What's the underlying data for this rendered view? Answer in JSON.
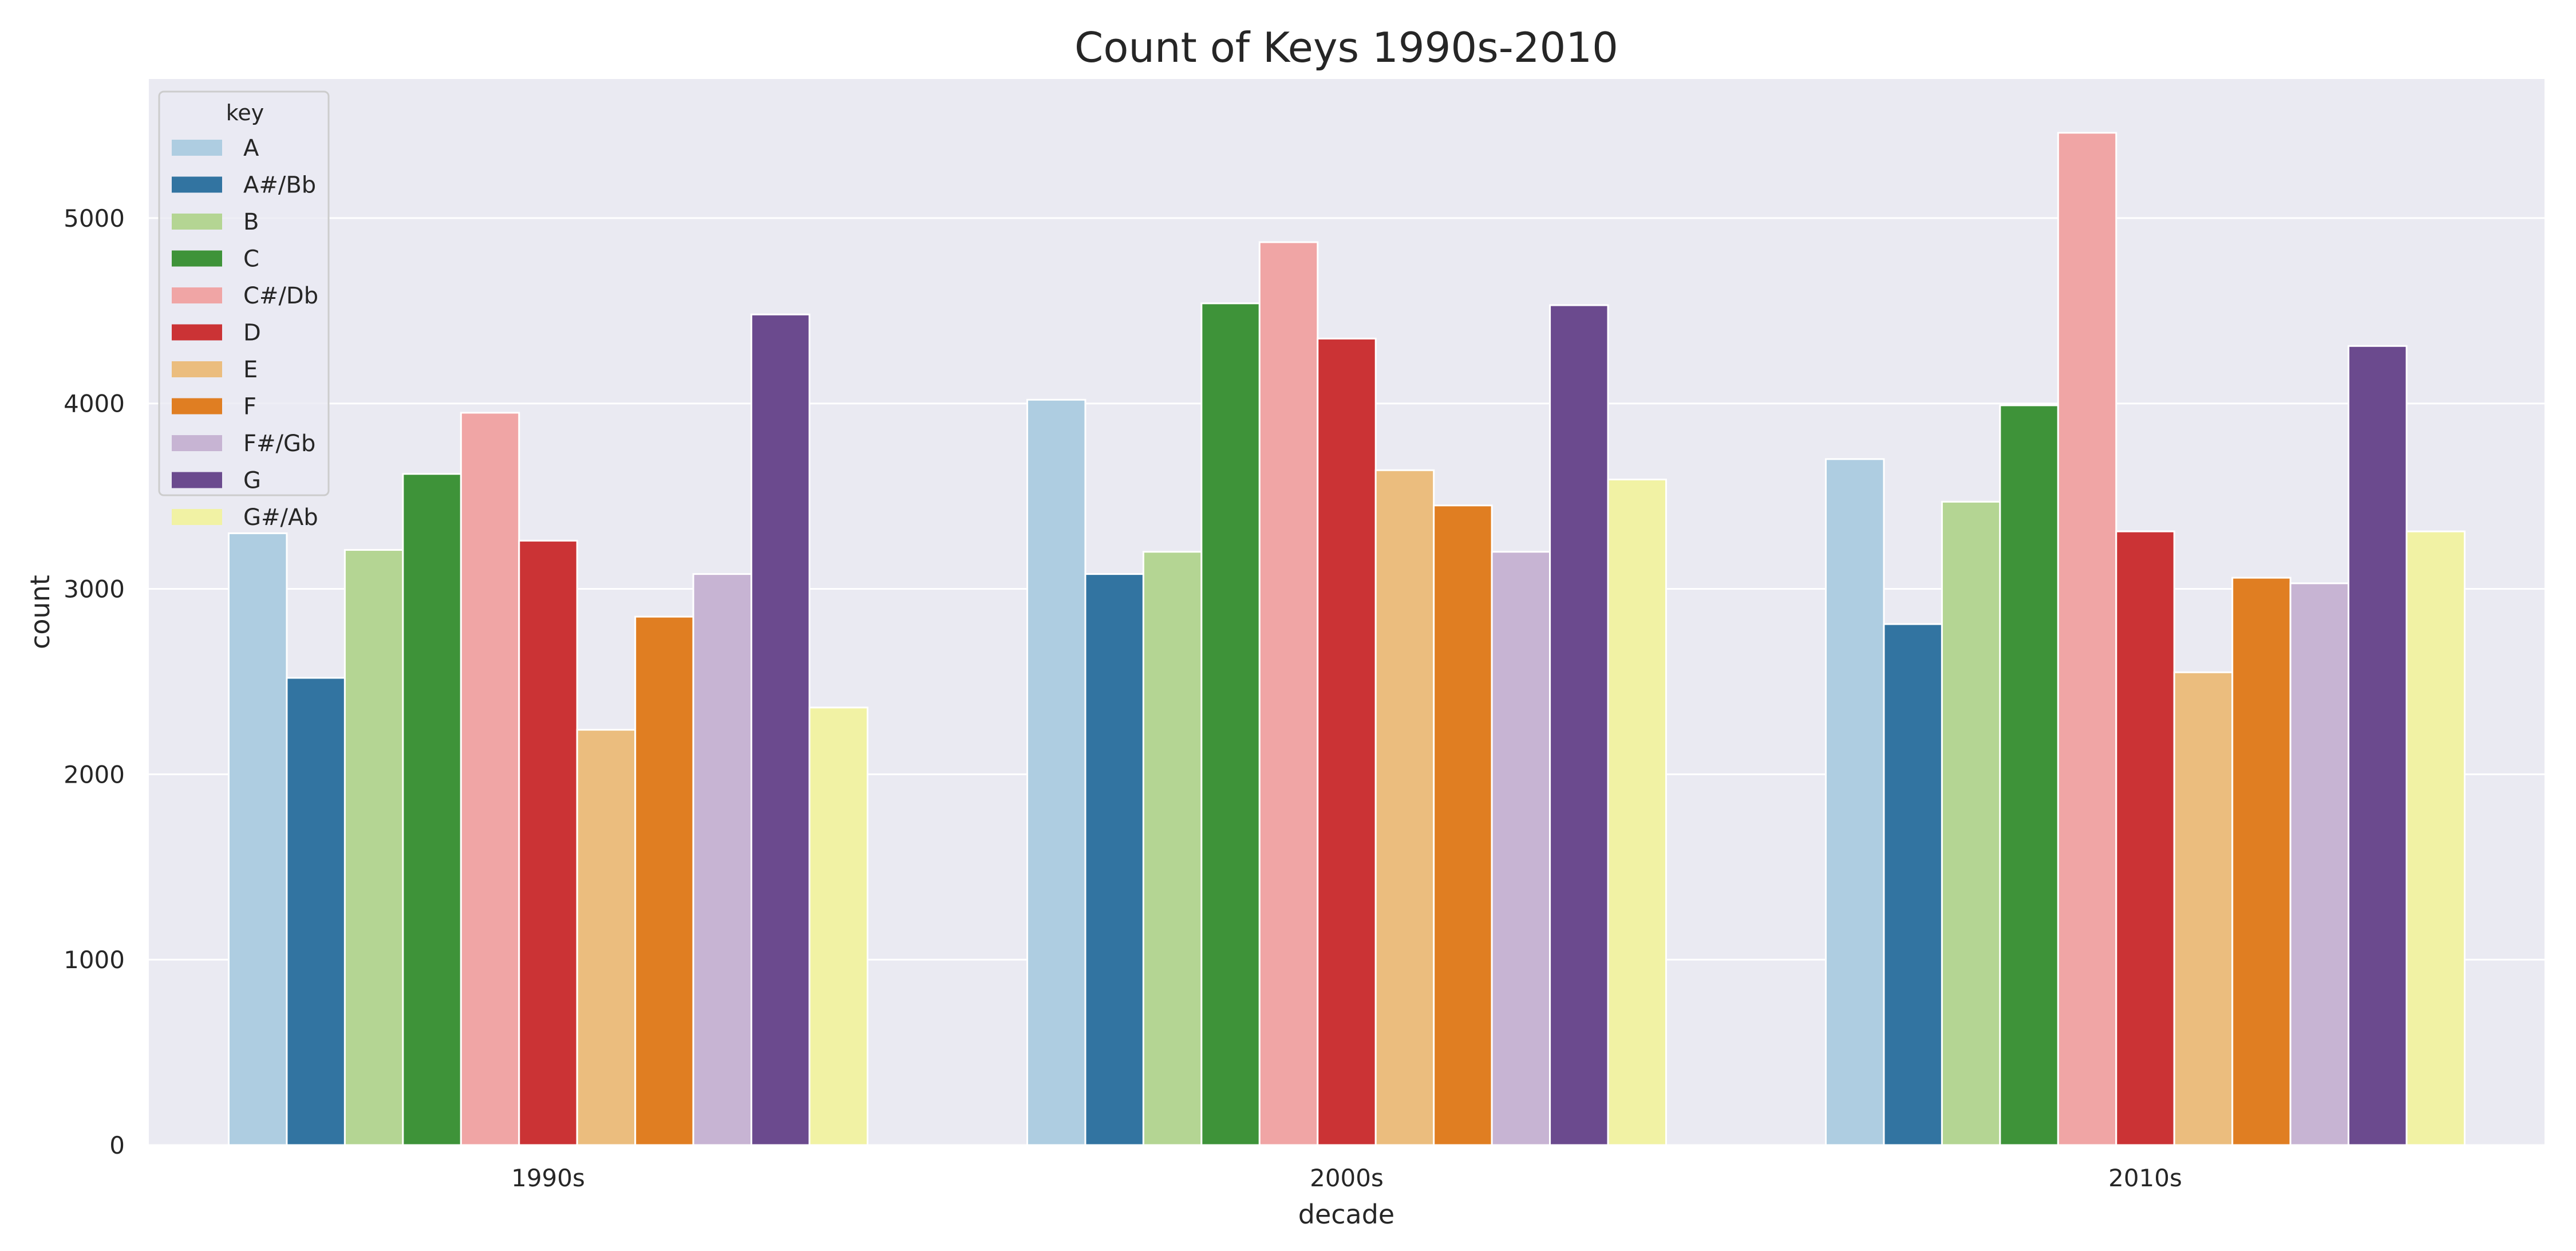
{
  "chart_data": {
    "type": "bar",
    "title": "Count of Keys 1990s-2010",
    "xlabel": "decade",
    "ylabel": "count",
    "categories": [
      "1990s",
      "2000s",
      "2010s"
    ],
    "ylim": [
      0,
      5750
    ],
    "yticks": [
      0,
      1000,
      2000,
      3000,
      4000,
      5000
    ],
    "grid": true,
    "legend": {
      "title": "key",
      "placement": "top-left"
    },
    "series": [
      {
        "name": "A",
        "color": "#aecde1",
        "values": [
          3300,
          4020,
          3700
        ]
      },
      {
        "name": "A#/Bb",
        "color": "#3274a1",
        "values": [
          2520,
          3080,
          2810
        ]
      },
      {
        "name": "B",
        "color": "#b4d593",
        "values": [
          3210,
          3200,
          3470
        ]
      },
      {
        "name": "C",
        "color": "#3e9339",
        "values": [
          3620,
          4540,
          3990
        ]
      },
      {
        "name": "C#/Db",
        "color": "#f0a5a5",
        "values": [
          3950,
          4870,
          5460
        ]
      },
      {
        "name": "D",
        "color": "#cb3335",
        "values": [
          3260,
          4350,
          3310
        ]
      },
      {
        "name": "E",
        "color": "#ebbd7e",
        "values": [
          2240,
          3640,
          2550
        ]
      },
      {
        "name": "F",
        "color": "#e07e22",
        "values": [
          2850,
          3450,
          3060
        ]
      },
      {
        "name": "F#/Gb",
        "color": "#c7b4d3",
        "values": [
          3080,
          3200,
          3030
        ]
      },
      {
        "name": "G",
        "color": "#6b4a8e",
        "values": [
          4480,
          4530,
          4310
        ]
      },
      {
        "name": "G#/Ab",
        "color": "#f1f2a4",
        "values": [
          2360,
          3590,
          3310
        ]
      }
    ]
  }
}
